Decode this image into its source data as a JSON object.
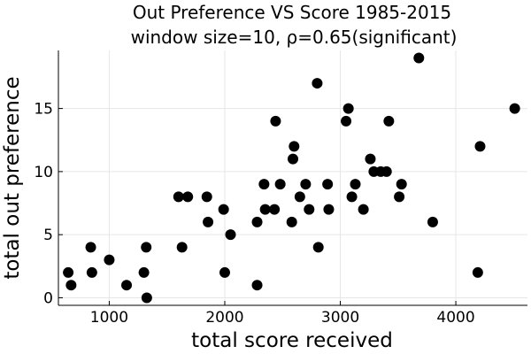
{
  "chart_data": {
    "type": "scatter",
    "title_lines": [
      "Out Preference VS Score 1985-2015",
      "window size=10, ρ=0.65(significant)"
    ],
    "xlabel": "total score received",
    "ylabel": "total out preference",
    "xlim": [
      560,
      4620
    ],
    "ylim": [
      -0.6,
      19.6
    ],
    "xticks": [
      1000,
      2000,
      3000,
      4000
    ],
    "yticks": [
      0,
      5,
      10,
      15
    ],
    "grid": true,
    "legend": "none",
    "marker_color": "#000000",
    "points": [
      {
        "x": 645,
        "y": 2
      },
      {
        "x": 670,
        "y": 1
      },
      {
        "x": 840,
        "y": 4
      },
      {
        "x": 850,
        "y": 2
      },
      {
        "x": 1000,
        "y": 3
      },
      {
        "x": 1150,
        "y": 1
      },
      {
        "x": 1300,
        "y": 2
      },
      {
        "x": 1320,
        "y": 4
      },
      {
        "x": 1325,
        "y": 0
      },
      {
        "x": 1600,
        "y": 8
      },
      {
        "x": 1630,
        "y": 4
      },
      {
        "x": 1680,
        "y": 8
      },
      {
        "x": 1845,
        "y": 8
      },
      {
        "x": 1855,
        "y": 6
      },
      {
        "x": 1990,
        "y": 7
      },
      {
        "x": 2000,
        "y": 2
      },
      {
        "x": 2050,
        "y": 5
      },
      {
        "x": 2280,
        "y": 1
      },
      {
        "x": 2280,
        "y": 6
      },
      {
        "x": 2340,
        "y": 9
      },
      {
        "x": 2350,
        "y": 7
      },
      {
        "x": 2430,
        "y": 7
      },
      {
        "x": 2440,
        "y": 14
      },
      {
        "x": 2480,
        "y": 9
      },
      {
        "x": 2580,
        "y": 6
      },
      {
        "x": 2590,
        "y": 11
      },
      {
        "x": 2600,
        "y": 12
      },
      {
        "x": 2650,
        "y": 8
      },
      {
        "x": 2700,
        "y": 9
      },
      {
        "x": 2730,
        "y": 7
      },
      {
        "x": 2800,
        "y": 17
      },
      {
        "x": 2810,
        "y": 4
      },
      {
        "x": 2890,
        "y": 9
      },
      {
        "x": 2900,
        "y": 7
      },
      {
        "x": 3050,
        "y": 14
      },
      {
        "x": 3070,
        "y": 15
      },
      {
        "x": 3100,
        "y": 8
      },
      {
        "x": 3130,
        "y": 9
      },
      {
        "x": 3200,
        "y": 7
      },
      {
        "x": 3260,
        "y": 11
      },
      {
        "x": 3290,
        "y": 10
      },
      {
        "x": 3350,
        "y": 10
      },
      {
        "x": 3400,
        "y": 10
      },
      {
        "x": 3420,
        "y": 14
      },
      {
        "x": 3510,
        "y": 8
      },
      {
        "x": 3530,
        "y": 9
      },
      {
        "x": 3680,
        "y": 19
      },
      {
        "x": 3800,
        "y": 6
      },
      {
        "x": 4190,
        "y": 2
      },
      {
        "x": 4210,
        "y": 12
      },
      {
        "x": 4510,
        "y": 15
      }
    ]
  }
}
